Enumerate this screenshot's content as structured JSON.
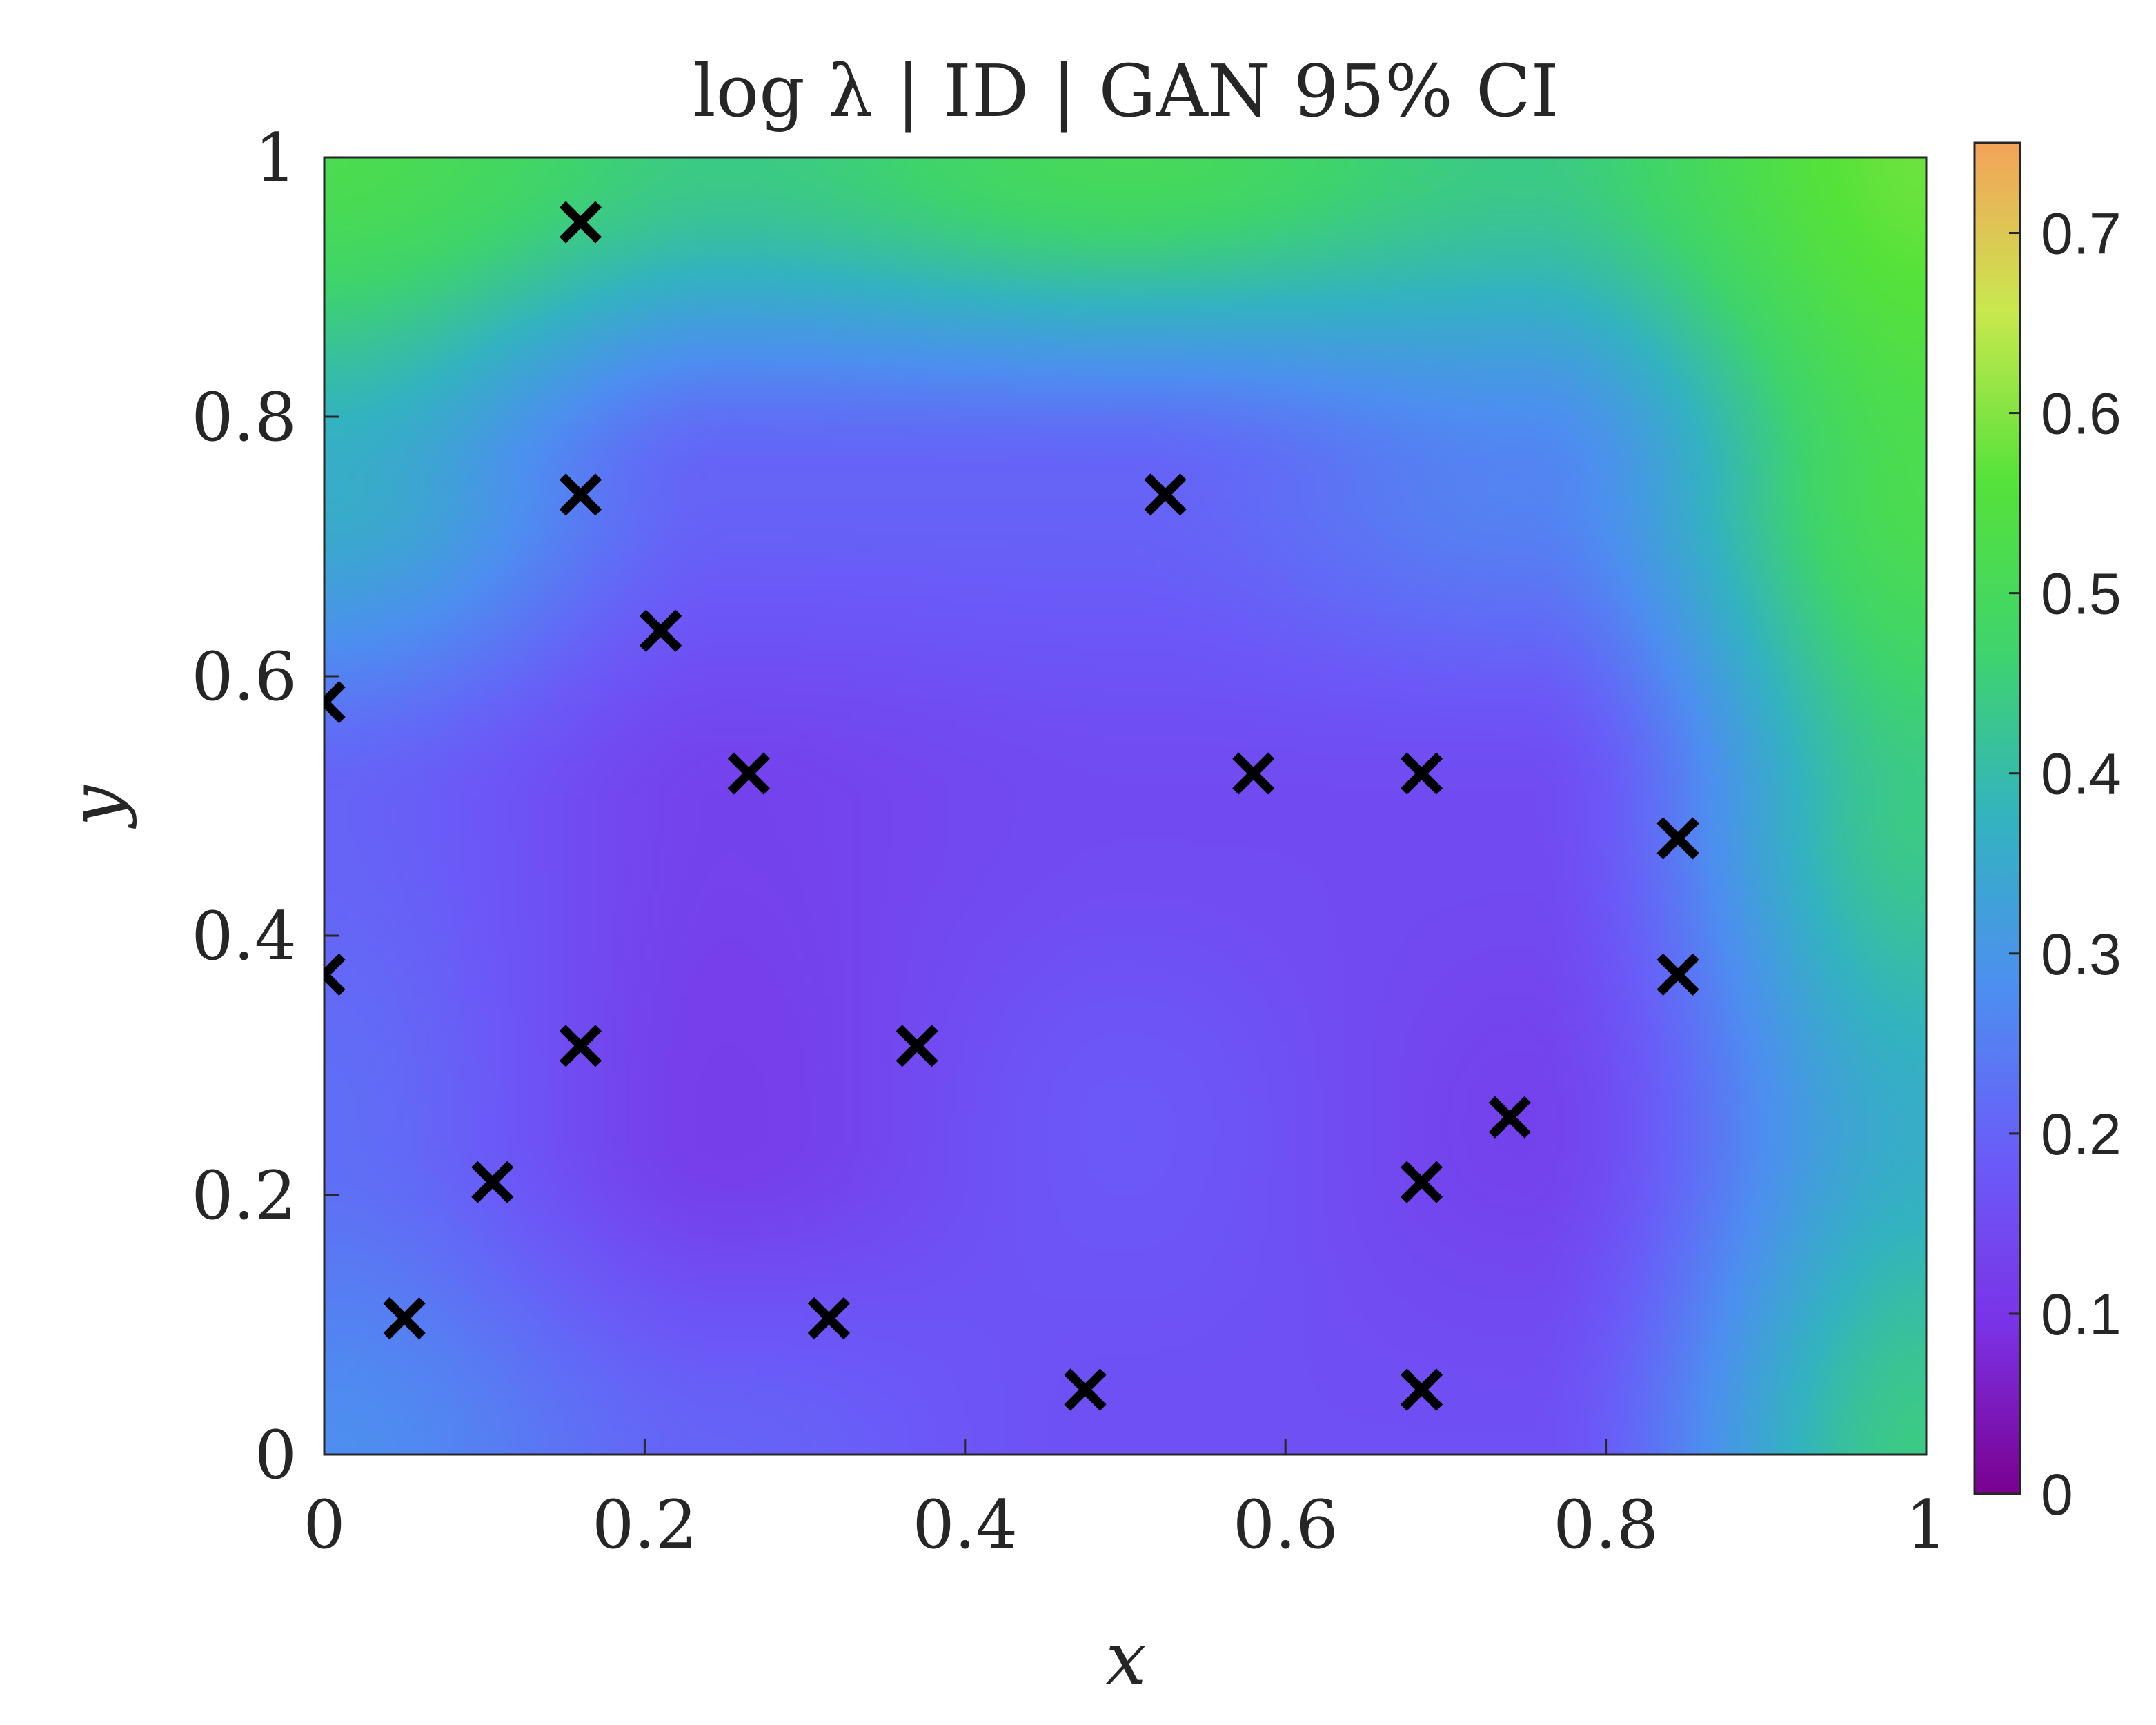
{
  "chart_data": {
    "type": "heatmap",
    "title": "log λ | ID | GAN 95% CI",
    "xlabel": "x",
    "ylabel": "y",
    "xlim": [
      0,
      1
    ],
    "ylim": [
      0,
      1
    ],
    "x_ticks": [
      "0",
      "0.2",
      "0.4",
      "0.6",
      "0.8",
      "1"
    ],
    "y_ticks": [
      "0",
      "0.2",
      "0.4",
      "0.6",
      "0.8",
      "1"
    ],
    "colorbar": {
      "range": [
        0,
        0.75
      ],
      "ticks": [
        "0",
        "0.1",
        "0.2",
        "0.3",
        "0.4",
        "0.5",
        "0.6",
        "0.7"
      ],
      "colormap": [
        "#7a0090",
        "#7b32e6",
        "#6a5cf8",
        "#4d8ff0",
        "#33b3c0",
        "#3fd46c",
        "#55e23a",
        "#c9e84e",
        "#f4a25a"
      ]
    },
    "grid": false,
    "field_samples": {
      "x": [
        0,
        0.25,
        0.5,
        0.75,
        1
      ],
      "y": [
        0,
        0.25,
        0.5,
        0.75,
        1
      ],
      "note_rows_from_y0": [
        [
          0.28,
          0.2,
          0.16,
          0.16,
          0.44
        ],
        [
          0.22,
          0.12,
          0.18,
          0.13,
          0.36
        ],
        [
          0.2,
          0.13,
          0.15,
          0.15,
          0.44
        ],
        [
          0.36,
          0.2,
          0.2,
          0.26,
          0.52
        ],
        [
          0.52,
          0.44,
          0.5,
          0.44,
          0.58
        ]
      ]
    },
    "series": [
      {
        "marker": "x",
        "color": "#000000",
        "points": [
          {
            "x": 0.16,
            "y": 0.95
          },
          {
            "x": 0.16,
            "y": 0.74
          },
          {
            "x": 0.21,
            "y": 0.635
          },
          {
            "x": 0.265,
            "y": 0.525
          },
          {
            "x": 0.0,
            "y": 0.58
          },
          {
            "x": 0.0,
            "y": 0.37
          },
          {
            "x": 0.16,
            "y": 0.315
          },
          {
            "x": 0.105,
            "y": 0.21
          },
          {
            "x": 0.05,
            "y": 0.105
          },
          {
            "x": 0.315,
            "y": 0.105
          },
          {
            "x": 0.37,
            "y": 0.315
          },
          {
            "x": 0.475,
            "y": 0.05
          },
          {
            "x": 0.525,
            "y": 0.74
          },
          {
            "x": 0.58,
            "y": 0.525
          },
          {
            "x": 0.685,
            "y": 0.525
          },
          {
            "x": 0.685,
            "y": 0.21
          },
          {
            "x": 0.685,
            "y": 0.05
          },
          {
            "x": 0.74,
            "y": 0.26
          },
          {
            "x": 0.845,
            "y": 0.475
          },
          {
            "x": 0.845,
            "y": 0.37
          }
        ]
      }
    ]
  }
}
